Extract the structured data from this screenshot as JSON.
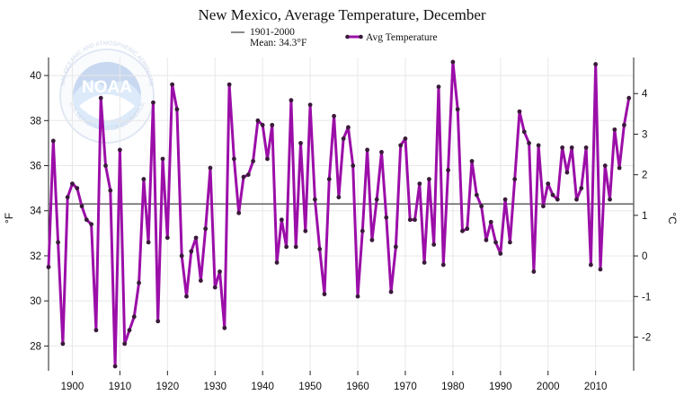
{
  "chart_data": {
    "type": "line",
    "title": "New Mexico, Average Temperature, December",
    "xlabel": "",
    "ylabel": "°F",
    "ylabel_right": "°C",
    "xlim": [
      1895,
      2018
    ],
    "ylim": [
      26.9,
      40.8
    ],
    "ylim_right_celsius": [
      -2.83,
      4.89
    ],
    "x_ticks": [
      1900,
      1910,
      1920,
      1930,
      1940,
      1950,
      1960,
      1970,
      1980,
      1990,
      2000,
      2010
    ],
    "y_ticks": [
      28,
      30,
      32,
      34,
      36,
      38,
      40
    ],
    "y_ticks_right": [
      -2,
      -1,
      0,
      1,
      2,
      3,
      4
    ],
    "grid": true,
    "legend_position": "top-center",
    "reference_line": {
      "label": "1901-2000",
      "sublabel": "Mean: 34.3°F",
      "value": 34.3,
      "color": "#6d6d6d"
    },
    "series": [
      {
        "name": "Avg Temperature",
        "color": "#9b0ea8",
        "marker_color": "#3a1a3a",
        "x": [
          1895,
          1896,
          1897,
          1898,
          1899,
          1900,
          1901,
          1902,
          1903,
          1904,
          1905,
          1906,
          1907,
          1908,
          1909,
          1910,
          1911,
          1912,
          1913,
          1914,
          1915,
          1916,
          1917,
          1918,
          1919,
          1920,
          1921,
          1922,
          1923,
          1924,
          1925,
          1926,
          1927,
          1928,
          1929,
          1930,
          1931,
          1932,
          1933,
          1934,
          1935,
          1936,
          1937,
          1938,
          1939,
          1940,
          1941,
          1942,
          1943,
          1944,
          1945,
          1946,
          1947,
          1948,
          1949,
          1950,
          1951,
          1952,
          1953,
          1954,
          1955,
          1956,
          1957,
          1958,
          1959,
          1960,
          1961,
          1962,
          1963,
          1964,
          1965,
          1966,
          1967,
          1968,
          1969,
          1970,
          1971,
          1972,
          1973,
          1974,
          1975,
          1976,
          1977,
          1978,
          1979,
          1980,
          1981,
          1982,
          1983,
          1984,
          1985,
          1986,
          1987,
          1988,
          1989,
          1990,
          1991,
          1992,
          1993,
          1994,
          1995,
          1996,
          1997,
          1998,
          1999,
          2000,
          2001,
          2002,
          2003,
          2004,
          2005,
          2006,
          2007,
          2008,
          2009,
          2010,
          2011,
          2012,
          2013,
          2014,
          2015,
          2016,
          2017
        ],
        "values": [
          31.5,
          37.1,
          32.6,
          28.1,
          34.6,
          35.2,
          35.0,
          34.2,
          33.6,
          33.4,
          28.7,
          39.0,
          36.0,
          34.9,
          27.1,
          36.7,
          28.1,
          28.7,
          29.3,
          30.8,
          35.4,
          32.6,
          38.8,
          29.1,
          36.3,
          32.8,
          39.6,
          38.5,
          32.0,
          30.2,
          32.2,
          32.8,
          30.9,
          33.2,
          35.9,
          30.6,
          31.3,
          28.8,
          39.6,
          36.3,
          33.9,
          35.5,
          35.6,
          36.2,
          38.0,
          37.8,
          36.3,
          37.8,
          31.7,
          33.6,
          32.4,
          38.9,
          32.4,
          37.0,
          33.1,
          38.7,
          34.5,
          32.3,
          30.3,
          35.4,
          38.2,
          34.6,
          37.2,
          37.7,
          36.0,
          30.2,
          33.1,
          36.7,
          32.7,
          34.5,
          36.6,
          33.7,
          30.4,
          32.4,
          36.9,
          37.2,
          33.6,
          33.6,
          35.2,
          31.7,
          35.4,
          32.5,
          39.5,
          31.6,
          35.8,
          40.6,
          38.5,
          33.1,
          33.2,
          36.2,
          34.7,
          34.2,
          32.7,
          33.5,
          32.6,
          32.1,
          34.5,
          32.6,
          35.4,
          38.4,
          37.5,
          37.0,
          31.3,
          36.9,
          34.2,
          35.2,
          34.7,
          34.5,
          36.8,
          35.7,
          36.8,
          34.5,
          35.0,
          36.8,
          31.6,
          40.5,
          31.4,
          36.0,
          34.5,
          37.6,
          35.9,
          37.8,
          39.0
        ]
      }
    ]
  },
  "logo": {
    "name": "NOAA",
    "ring_text": "NATIONAL OCEANIC AND ATMOSPHERIC ADMINISTRATION",
    "lower_ring_text": "U.S. DEPARTMENT OF COMMERCE"
  }
}
